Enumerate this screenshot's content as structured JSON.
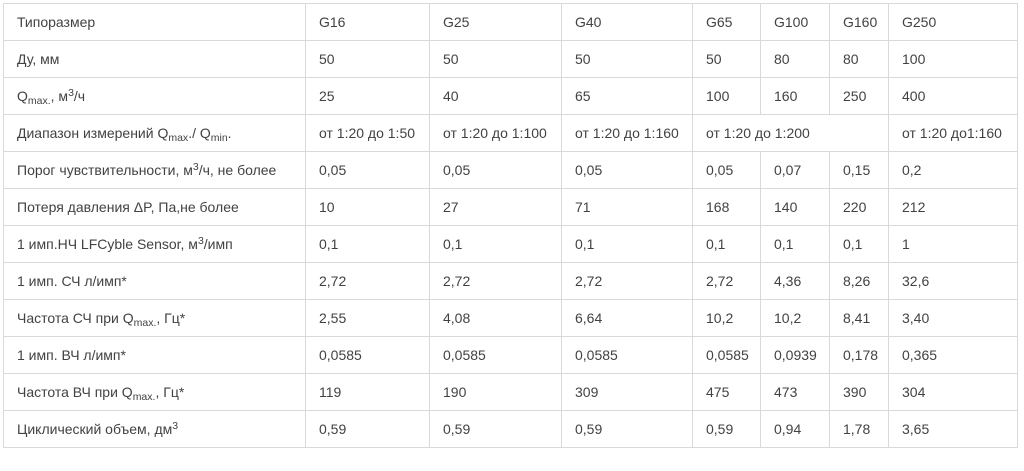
{
  "colors": {
    "text": "#424242",
    "border": "#d9d9d9",
    "background": "#ffffff"
  },
  "table": {
    "name": "gas-meter-specifications",
    "header": {
      "label": "Типоразмер",
      "columns": [
        "G16",
        "G25",
        "G40",
        "G65",
        "G100",
        "G160",
        "G250"
      ]
    },
    "rows": [
      {
        "label": "Ду, мм",
        "cells": [
          "50",
          "50",
          "50",
          "50",
          "80",
          "80",
          "100"
        ]
      },
      {
        "label": "Q_{max.}, м^{3}/ч",
        "cells": [
          "25",
          "40",
          "65",
          "100",
          "160",
          "250",
          "400"
        ]
      },
      {
        "label": "Диапазон измерений Q_{max}./ Q_{min}.",
        "cells": [
          {
            "text": "от 1:20 до 1:50"
          },
          {
            "text": "от 1:20 до 1:100"
          },
          {
            "text": "от 1:20 до 1:160"
          },
          {
            "text": "от 1:20 до 1:200",
            "colspan": 3
          },
          {
            "text": "от 1:20 до1:160"
          }
        ]
      },
      {
        "label": "Порог чувствительности, м^{3}/ч, не более",
        "cells": [
          "0,05",
          "0,05",
          "0,05",
          "0,05",
          "0,07",
          "0,15",
          "0,2"
        ]
      },
      {
        "label": "Потеря давления ΔP, Па,не более",
        "cells": [
          "10",
          "27",
          "71",
          "168",
          "140",
          "220",
          "212"
        ]
      },
      {
        "label": "1 имп.НЧ LFCyble Sensor, м^{3}/имп",
        "cells": [
          "0,1",
          "0,1",
          "0,1",
          "0,1",
          "0,1",
          "0,1",
          "1"
        ]
      },
      {
        "label": "1 имп. СЧ л/имп*",
        "cells": [
          "2,72",
          "2,72",
          "2,72",
          "2,72",
          "4,36",
          "8,26",
          "32,6"
        ]
      },
      {
        "label": "Частота СЧ при Q_{max.}, Гц*",
        "cells": [
          "2,55",
          "4,08",
          "6,64",
          "10,2",
          "10,2",
          "8,41",
          "3,40"
        ]
      },
      {
        "label": "1 имп. ВЧ л/имп*",
        "cells": [
          "0,0585",
          "0,0585",
          "0,0585",
          "0,0585",
          "0,0939",
          "0,178",
          "0,365"
        ]
      },
      {
        "label": "Частота ВЧ при Q_{max.}, Гц*",
        "cells": [
          "119",
          "190",
          "309",
          "475",
          "473",
          "390",
          "304"
        ]
      },
      {
        "label": "Циклический объем, дм^{3}",
        "cells": [
          "0,59",
          "0,59",
          "0,59",
          "0,59",
          "0,94",
          "1,78",
          "3,65"
        ]
      }
    ]
  }
}
